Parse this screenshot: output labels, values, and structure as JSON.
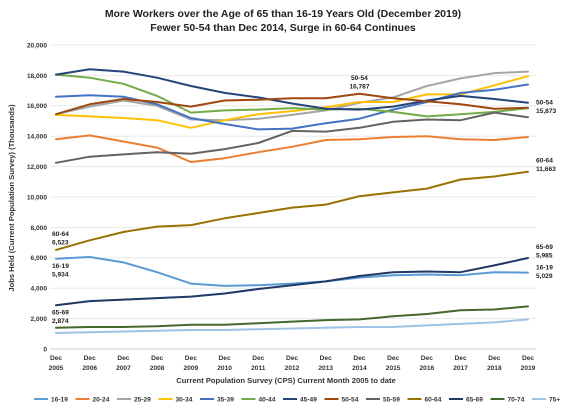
{
  "chart_data": {
    "type": "line",
    "title": "More Workers over the Age of 65 than 16-19 Years Old (December 2019)",
    "subtitle": "Fewer 50-54 than Dec 2014, Surge in 60-64 Continues",
    "xlabel": "Current Population Survey (CPS) Current Month 2005 to date",
    "ylabel": "Jobs Held (Current Population Survey) (Thousands)",
    "ylim": [
      0,
      20000
    ],
    "yticks": [
      "0",
      "2,000",
      "4,000",
      "6,000",
      "8,000",
      "10,000",
      "12,000",
      "14,000",
      "16,000",
      "18,000",
      "20,000"
    ],
    "grid": true,
    "legend_position": "bottom",
    "categories": [
      {
        "top": "Dec",
        "bottom": "2005"
      },
      {
        "top": "Dec",
        "bottom": "2006"
      },
      {
        "top": "Dec",
        "bottom": "2007"
      },
      {
        "top": "Dec",
        "bottom": "2008"
      },
      {
        "top": "Dec",
        "bottom": "2009"
      },
      {
        "top": "Dec",
        "bottom": "2010"
      },
      {
        "top": "Dec",
        "bottom": "2011"
      },
      {
        "top": "Dec",
        "bottom": "2012"
      },
      {
        "top": "Dec",
        "bottom": "2013"
      },
      {
        "top": "Dec",
        "bottom": "2014"
      },
      {
        "top": "Dec",
        "bottom": "2015"
      },
      {
        "top": "Dec",
        "bottom": "2016"
      },
      {
        "top": "Dec",
        "bottom": "2017"
      },
      {
        "top": "Dec",
        "bottom": "2018"
      },
      {
        "top": "Dec",
        "bottom": "2019"
      }
    ],
    "series": [
      {
        "name": "16-19",
        "color": "#5b9bd5",
        "values": [
          5934,
          6050,
          5700,
          5050,
          4300,
          4150,
          4200,
          4300,
          4450,
          4700,
          4850,
          4900,
          4850,
          5050,
          5029
        ]
      },
      {
        "name": "20-24",
        "color": "#ed7d31",
        "values": [
          13800,
          14050,
          13650,
          13250,
          12300,
          12550,
          12950,
          13300,
          13750,
          13800,
          13950,
          14000,
          13800,
          13750,
          13950
        ]
      },
      {
        "name": "25-29",
        "color": "#a5a5a5",
        "values": [
          15450,
          15950,
          16350,
          16000,
          15100,
          15050,
          15150,
          15400,
          15700,
          16200,
          16550,
          17300,
          17800,
          18150,
          18250
        ]
      },
      {
        "name": "30-34",
        "color": "#ffc000",
        "values": [
          15400,
          15300,
          15200,
          15050,
          14550,
          15050,
          15450,
          15650,
          15900,
          16250,
          16250,
          16750,
          16750,
          17350,
          17950
        ]
      },
      {
        "name": "35-39",
        "color": "#4472c4",
        "values": [
          16600,
          16700,
          16600,
          16100,
          15200,
          14800,
          14450,
          14500,
          14850,
          15150,
          15750,
          16250,
          16850,
          17050,
          17400
        ]
      },
      {
        "name": "40-44",
        "color": "#70ad47",
        "values": [
          18050,
          17850,
          17450,
          16650,
          15550,
          15700,
          15750,
          15850,
          15750,
          15800,
          15600,
          15300,
          15450,
          15600,
          15850
        ]
      },
      {
        "name": "45-49",
        "color": "#264478",
        "values": [
          18050,
          18400,
          18250,
          17850,
          17300,
          16850,
          16550,
          16150,
          15800,
          15750,
          15950,
          16350,
          16650,
          16450,
          16200
        ]
      },
      {
        "name": "50-54",
        "color": "#9e480e",
        "values": [
          15450,
          16100,
          16450,
          16250,
          15950,
          16350,
          16400,
          16500,
          16500,
          16787,
          16500,
          16300,
          16100,
          15800,
          15873
        ]
      },
      {
        "name": "55-59",
        "color": "#636363",
        "values": [
          12250,
          12650,
          12800,
          12950,
          12850,
          13150,
          13550,
          14350,
          14300,
          14550,
          14950,
          15100,
          15050,
          15550,
          15250
        ]
      },
      {
        "name": "60-64",
        "color": "#997300",
        "values": [
          6523,
          7150,
          7700,
          8050,
          8150,
          8600,
          8950,
          9300,
          9500,
          10050,
          10300,
          10550,
          11150,
          11350,
          11663
        ]
      },
      {
        "name": "65-69",
        "color": "#203864",
        "values": [
          2874,
          3150,
          3250,
          3350,
          3450,
          3650,
          3950,
          4200,
          4450,
          4800,
          5050,
          5100,
          5050,
          5500,
          5985
        ]
      },
      {
        "name": "70-74",
        "color": "#43682b",
        "values": [
          1400,
          1450,
          1450,
          1500,
          1600,
          1600,
          1700,
          1800,
          1900,
          1950,
          2150,
          2300,
          2550,
          2600,
          2800
        ]
      },
      {
        "name": "75+",
        "color": "#9dc3e6",
        "values": [
          1050,
          1100,
          1150,
          1200,
          1250,
          1250,
          1300,
          1350,
          1400,
          1450,
          1450,
          1550,
          1650,
          1750,
          1950
        ]
      }
    ],
    "annotations": [
      {
        "name": "50-54",
        "value": "16,787",
        "series": "50-54",
        "index": 9,
        "placement": "above"
      },
      {
        "name": "50-54",
        "value": "15,873",
        "series": "50-54",
        "index": 14,
        "placement": "right"
      },
      {
        "name": "60-64",
        "value": "6,523",
        "series": "60-64",
        "index": 0,
        "placement": "above"
      },
      {
        "name": "60-64",
        "value": "11,663",
        "series": "60-64",
        "index": 14,
        "placement": "right-above"
      },
      {
        "name": "16-19",
        "value": "5,934",
        "series": "16-19",
        "index": 0,
        "placement": "below"
      },
      {
        "name": "65-69",
        "value": "5,985",
        "series": "65-69",
        "index": 14,
        "placement": "right-above"
      },
      {
        "name": "16-19",
        "value": "5,029",
        "series": "16-19",
        "index": 14,
        "placement": "right"
      },
      {
        "name": "65-69",
        "value": "2,874",
        "series": "65-69",
        "index": 0,
        "placement": "below"
      }
    ]
  }
}
